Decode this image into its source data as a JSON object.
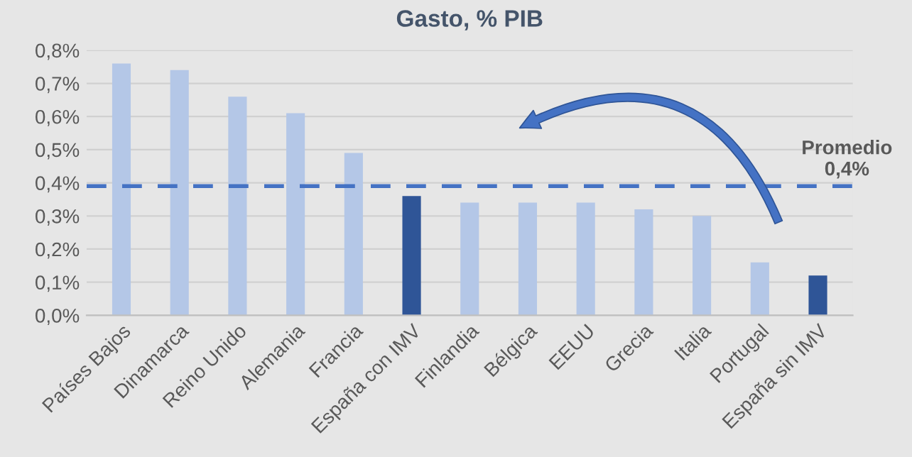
{
  "chart_data": {
    "type": "bar",
    "title": "Gasto, % PIB",
    "categories": [
      "Países Bajos",
      "Dinamarca",
      "Reino Unido",
      "Alemania",
      "Francia",
      "España con IMV",
      "Finlandia",
      "Bélgica",
      "EEUU",
      "Grecia",
      "Italia",
      "Portugal",
      "España sin IMV"
    ],
    "values": [
      0.76,
      0.74,
      0.66,
      0.61,
      0.49,
      0.36,
      0.34,
      0.34,
      0.34,
      0.32,
      0.3,
      0.16,
      0.12
    ],
    "colors": [
      "#b4c7e7",
      "#b4c7e7",
      "#b4c7e7",
      "#b4c7e7",
      "#b4c7e7",
      "#2f5597",
      "#b4c7e7",
      "#b4c7e7",
      "#b4c7e7",
      "#b4c7e7",
      "#b4c7e7",
      "#b4c7e7",
      "#2f5597"
    ],
    "ylim": [
      0,
      0.8
    ],
    "yticks": [
      {
        "value": 0,
        "label": "0,0%"
      },
      {
        "value": 0.1,
        "label": "0,1%"
      },
      {
        "value": 0.2,
        "label": "0,2%"
      },
      {
        "value": 0.3,
        "label": "0,3%"
      },
      {
        "value": 0.4,
        "label": "0,4%"
      },
      {
        "value": 0.5,
        "label": "0,5%"
      },
      {
        "value": 0.6,
        "label": "0,6%"
      },
      {
        "value": 0.7,
        "label": "0,7%"
      },
      {
        "value": 0.8,
        "label": "0,8%"
      }
    ],
    "ref_lines": [
      {
        "axis": "y",
        "value": 0.39,
        "label": "Promedio\n0,4%",
        "color": "#4472c4",
        "line_style": "dashed"
      }
    ],
    "grid": "y",
    "legend": false
  }
}
